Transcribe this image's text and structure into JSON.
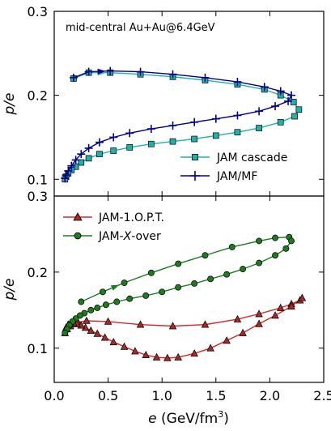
{
  "chart_data": [
    {
      "type": "line",
      "panel": "top",
      "annotation": "mid-central Au+Au@6.4GeV",
      "ylabel": "p/e",
      "xlabel": "",
      "xlim": [
        0,
        2.5
      ],
      "ylim": [
        0.08,
        0.3
      ],
      "yticks": [
        0.1,
        0.2,
        0.3
      ],
      "grid": false,
      "legend_position": "lower-right",
      "series": [
        {
          "name": "JAM cascade",
          "color": "#20b2aa",
          "marker": "square",
          "x": [
            0.18,
            0.32,
            0.52,
            0.8,
            1.1,
            1.4,
            1.7,
            1.95,
            2.1,
            2.22,
            2.27,
            2.23,
            2.1,
            1.9,
            1.7,
            1.5,
            1.3,
            1.1,
            0.9,
            0.7,
            0.55,
            0.42,
            0.32,
            0.25,
            0.2,
            0.16,
            0.13,
            0.11,
            0.1
          ],
          "y": [
            0.22,
            0.227,
            0.227,
            0.225,
            0.222,
            0.218,
            0.213,
            0.207,
            0.2,
            0.192,
            0.183,
            0.175,
            0.168,
            0.161,
            0.156,
            0.152,
            0.148,
            0.145,
            0.142,
            0.138,
            0.134,
            0.13,
            0.125,
            0.12,
            0.115,
            0.111,
            0.107,
            0.103,
            0.1
          ]
        },
        {
          "name": "JAM/MF",
          "color": "#00008b",
          "marker": "plus",
          "x": [
            0.18,
            0.32,
            0.52,
            0.8,
            1.1,
            1.4,
            1.7,
            1.95,
            2.1,
            2.2,
            2.17,
            2.05,
            1.9,
            1.7,
            1.5,
            1.3,
            1.1,
            0.9,
            0.7,
            0.55,
            0.42,
            0.32,
            0.25,
            0.2,
            0.16,
            0.13,
            0.11,
            0.1
          ],
          "y": [
            0.221,
            0.228,
            0.229,
            0.228,
            0.225,
            0.221,
            0.216,
            0.21,
            0.205,
            0.2,
            0.193,
            0.187,
            0.181,
            0.176,
            0.172,
            0.168,
            0.164,
            0.16,
            0.155,
            0.15,
            0.144,
            0.137,
            0.13,
            0.123,
            0.116,
            0.11,
            0.105,
            0.101
          ]
        }
      ]
    },
    {
      "type": "line",
      "panel": "bottom",
      "ylabel": "p/e",
      "xlabel": "e (GeV/fm³)",
      "xlim": [
        0,
        2.5
      ],
      "ylim": [
        0.055,
        0.3
      ],
      "xticks": [
        0.0,
        0.5,
        1.0,
        1.5,
        2.0,
        2.5
      ],
      "yticks": [
        0.1,
        0.2,
        0.3
      ],
      "grid": false,
      "legend_position": "top-left",
      "series": [
        {
          "name": "JAM-1.O.P.T.",
          "color": "#d62728",
          "marker": "triangle",
          "x": [
            0.1,
            0.12,
            0.15,
            0.18,
            0.22,
            0.3,
            0.5,
            0.8,
            1.1,
            1.4,
            1.7,
            1.9,
            2.1,
            2.2,
            2.28,
            2.3,
            2.2,
            2.05,
            1.9,
            1.75,
            1.6,
            1.45,
            1.3,
            1.15,
            1.05,
            0.95,
            0.85,
            0.75,
            0.65,
            0.55,
            0.47,
            0.4,
            0.34,
            0.29,
            0.25,
            0.21,
            0.18,
            0.15,
            0.13,
            0.11
          ],
          "y": [
            0.12,
            0.125,
            0.129,
            0.132,
            0.134,
            0.136,
            0.135,
            0.131,
            0.129,
            0.131,
            0.138,
            0.145,
            0.153,
            0.158,
            0.163,
            0.166,
            0.155,
            0.143,
            0.132,
            0.12,
            0.11,
            0.1,
            0.093,
            0.088,
            0.087,
            0.088,
            0.091,
            0.096,
            0.102,
            0.108,
            0.114,
            0.119,
            0.123,
            0.127,
            0.13,
            0.132,
            0.133,
            0.133,
            0.131,
            0.127
          ]
        },
        {
          "name": "JAM-X-over",
          "color": "#1e7b1e",
          "marker": "circle",
          "x": [
            0.25,
            0.45,
            0.65,
            0.9,
            1.15,
            1.4,
            1.65,
            1.9,
            2.05,
            2.18,
            2.2,
            2.15,
            2.05,
            1.9,
            1.75,
            1.6,
            1.45,
            1.3,
            1.15,
            1.0,
            0.85,
            0.7,
            0.58,
            0.48,
            0.4,
            0.34,
            0.28,
            0.24,
            0.2,
            0.17,
            0.14,
            0.12,
            0.1
          ],
          "y": [
            0.161,
            0.174,
            0.186,
            0.199,
            0.211,
            0.222,
            0.233,
            0.241,
            0.245,
            0.246,
            0.241,
            0.231,
            0.222,
            0.212,
            0.204,
            0.197,
            0.191,
            0.185,
            0.18,
            0.174,
            0.169,
            0.165,
            0.161,
            0.157,
            0.153,
            0.15,
            0.146,
            0.143,
            0.139,
            0.135,
            0.13,
            0.125,
            0.12
          ]
        }
      ]
    }
  ]
}
